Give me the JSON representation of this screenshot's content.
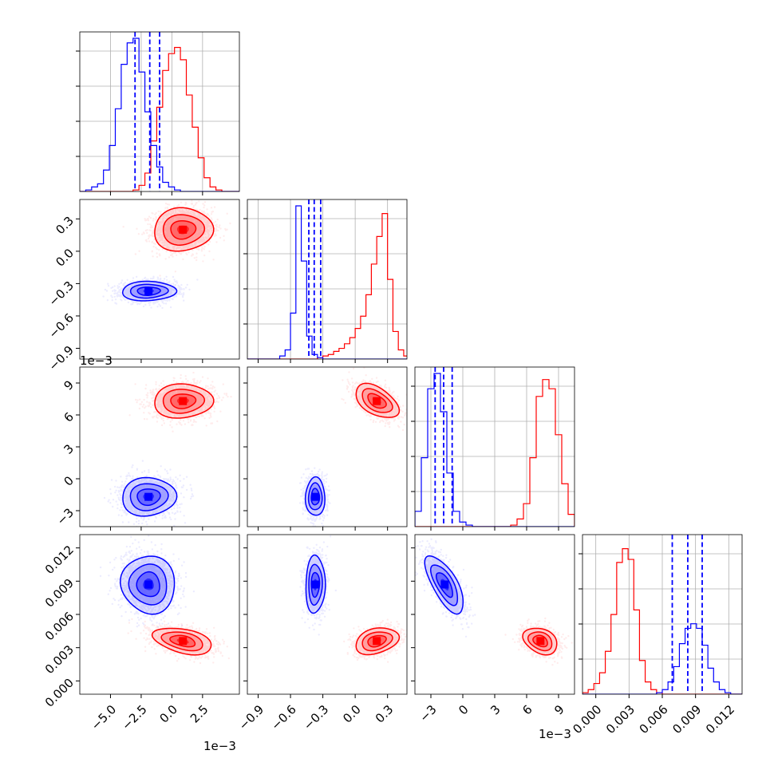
{
  "chart_data": {
    "type": "corner",
    "x_multiplier_text": "1e−3",
    "colors": {
      "blue": "#0000ff",
      "red": "#ff0000"
    },
    "series": [
      {
        "color": "blue"
      },
      {
        "color": "red"
      }
    ],
    "parameters": [
      {
        "range": [
          -7.5,
          5.5
        ],
        "ticks": [
          -5.0,
          -2.5,
          0.0,
          2.5
        ],
        "tick_labels": [
          "−5.0",
          "−2.5",
          "0.0",
          "2.5"
        ],
        "multiplier": "1e−3",
        "quantiles_blue": [
          -3.0,
          -1.8,
          -1.0
        ]
      },
      {
        "range": [
          -1.0,
          0.48
        ],
        "ticks": [
          -0.9,
          -0.6,
          -0.3,
          0.0,
          0.3
        ],
        "tick_labels": [
          "−0.9",
          "−0.6",
          "−0.3",
          "0.0",
          "0.3"
        ],
        "multiplier": "1e−3",
        "quantiles_blue": [
          -0.43,
          -0.38,
          -0.32
        ]
      },
      {
        "range": [
          -4.5,
          10.5
        ],
        "ticks": [
          -3,
          0,
          3,
          6,
          9
        ],
        "tick_labels": [
          "−3",
          "0",
          "3",
          "6",
          "9"
        ],
        "multiplier": "1e−3",
        "quantiles_blue": [
          -2.6,
          -1.8,
          -1.0
        ]
      },
      {
        "range": [
          -0.0012,
          0.0132
        ],
        "ticks": [
          0.0,
          0.003,
          0.006,
          0.009,
          0.012
        ],
        "tick_labels": [
          "0.000",
          "0.003",
          "0.006",
          "0.009",
          "0.012"
        ],
        "multiplier": "",
        "quantiles_blue": [
          0.0069,
          0.0083,
          0.0096
        ]
      }
    ],
    "diagonal_histograms": [
      {
        "bins": [
          -7.5,
          6.0,
          28
        ],
        "blue": [
          0,
          0.01,
          0.03,
          0.05,
          0.14,
          0.3,
          0.54,
          0.83,
          0.97,
          1.0,
          0.78,
          0.52,
          0.3,
          0.16,
          0.06,
          0.03,
          0.01,
          0,
          0,
          0,
          0,
          0,
          0,
          0,
          0,
          0,
          0,
          0
        ],
        "red": [
          0,
          0,
          0,
          0,
          0,
          0,
          0,
          0,
          0,
          0.01,
          0.04,
          0.12,
          0.33,
          0.55,
          0.79,
          0.9,
          0.94,
          0.86,
          0.63,
          0.42,
          0.22,
          0.09,
          0.03,
          0.01,
          0,
          0,
          0,
          0
        ]
      },
      {
        "bins": [
          -1.0,
          0.5,
          30
        ],
        "blue": [
          0,
          0,
          0,
          0,
          0,
          0,
          0.02,
          0.06,
          0.3,
          1.0,
          0.64,
          0.15,
          0.03,
          0.01,
          0,
          0,
          0,
          0,
          0,
          0,
          0,
          0,
          0,
          0,
          0,
          0,
          0,
          0,
          0,
          0
        ],
        "red": [
          0,
          0,
          0,
          0,
          0,
          0,
          0,
          0,
          0,
          0,
          0,
          0,
          0,
          0.01,
          0.02,
          0.03,
          0.05,
          0.07,
          0.1,
          0.14,
          0.2,
          0.28,
          0.42,
          0.62,
          0.8,
          0.95,
          0.52,
          0.18,
          0.06,
          0.02
        ]
      },
      {
        "bins": [
          -4.5,
          10.5,
          25
        ],
        "blue": [
          0.1,
          0.45,
          0.9,
          1.0,
          0.75,
          0.35,
          0.1,
          0.03,
          0.01,
          0,
          0,
          0,
          0,
          0,
          0,
          0,
          0,
          0,
          0,
          0,
          0,
          0,
          0,
          0,
          0
        ],
        "red": [
          0,
          0,
          0,
          0,
          0,
          0,
          0,
          0,
          0,
          0,
          0,
          0,
          0,
          0,
          0,
          0.01,
          0.05,
          0.15,
          0.45,
          0.85,
          0.96,
          0.9,
          0.6,
          0.28,
          0.08
        ]
      },
      {
        "bins": [
          -0.0012,
          0.0132,
          28
        ],
        "blue": [
          0,
          0,
          0,
          0,
          0,
          0,
          0,
          0,
          0,
          0,
          0,
          0,
          0,
          0.01,
          0.03,
          0.08,
          0.18,
          0.33,
          0.43,
          0.46,
          0.43,
          0.32,
          0.17,
          0.08,
          0.03,
          0.01,
          0,
          0
        ],
        "red": [
          0.01,
          0.03,
          0.07,
          0.14,
          0.28,
          0.52,
          0.86,
          0.95,
          0.88,
          0.55,
          0.22,
          0.08,
          0.03,
          0.01,
          0,
          0,
          0,
          0,
          0,
          0,
          0,
          0,
          0,
          0,
          0,
          0,
          0,
          0
        ]
      }
    ],
    "clusters": {
      "blue": {
        "mean": [
          -1.9,
          -0.37,
          -1.7,
          0.0087
        ],
        "sd": [
          1.1,
          0.045,
          0.9,
          0.0013
        ],
        "corr": [
          [
            1,
            0.05,
            0.05,
            -0.05
          ],
          [
            0.05,
            1,
            0,
            0.05
          ],
          [
            0.05,
            0,
            1,
            -0.7
          ],
          [
            -0.05,
            0.05,
            -0.7,
            1
          ]
        ]
      },
      "red": {
        "mean": [
          0.9,
          0.2,
          7.3,
          0.0036
        ],
        "sd": [
          1.2,
          0.1,
          0.8,
          0.0006
        ],
        "corr": [
          [
            1,
            0.05,
            0.05,
            -0.4
          ],
          [
            0.05,
            1,
            -0.5,
            0.3
          ],
          [
            0.05,
            -0.5,
            1,
            -0.3
          ],
          [
            -0.4,
            0.3,
            -0.3,
            1
          ]
        ]
      }
    },
    "grid": true
  }
}
